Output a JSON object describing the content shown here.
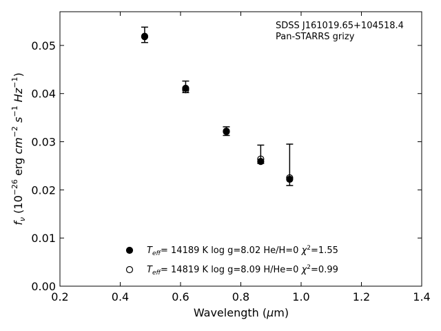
{
  "chart_data": {
    "type": "scatter",
    "xlabel": "Wavelength (μm)",
    "ylabel": "f_ν (10^-26 erg cm^-2 s^-1 Hz^-1)",
    "xlim": [
      0.2,
      1.4
    ],
    "ylim": [
      0.0,
      0.057
    ],
    "xticks": [
      0.2,
      0.4,
      0.6,
      0.8,
      1.0,
      1.2,
      1.4
    ],
    "xtick_labels": [
      "0.2",
      "0.4",
      "0.6",
      "0.8",
      "1.0",
      "1.2",
      "1.4"
    ],
    "yticks": [
      0.0,
      0.01,
      0.02,
      0.03,
      0.04,
      0.05
    ],
    "ytick_labels": [
      "0.00",
      "0.01",
      "0.02",
      "0.03",
      "0.04",
      "0.05"
    ],
    "grid": false,
    "legend_position": "bottom-center",
    "annotation_lines": [
      "SDSS J161019.65+104518.4",
      "Pan-STARRS grizy"
    ],
    "observed": {
      "x": [
        0.481,
        0.617,
        0.752,
        0.866,
        0.962
      ],
      "y": [
        0.0522,
        0.0414,
        0.0322,
        0.0274,
        0.0252
      ],
      "err": [
        0.0016,
        0.0012,
        0.0009,
        0.0019,
        0.0043
      ]
    },
    "series": [
      {
        "label_parts": {
          "teff": "= 14189 K",
          "rest": "log g=8.02  He/H=0",
          "chi": "=1.55"
        },
        "marker": "filled-circle",
        "x": [
          0.481,
          0.617,
          0.752,
          0.866,
          0.962
        ],
        "y": [
          0.0519,
          0.0411,
          0.0321,
          0.0259,
          0.0222
        ]
      },
      {
        "label_parts": {
          "teff": "= 14819 K",
          "rest": "log g=8.09  H/He=0",
          "chi": "=0.99"
        },
        "marker": "open-circle",
        "x": [
          0.481,
          0.617,
          0.752,
          0.866,
          0.962
        ],
        "y": [
          0.0518,
          0.0408,
          0.0322,
          0.0264,
          0.0225
        ]
      }
    ]
  }
}
